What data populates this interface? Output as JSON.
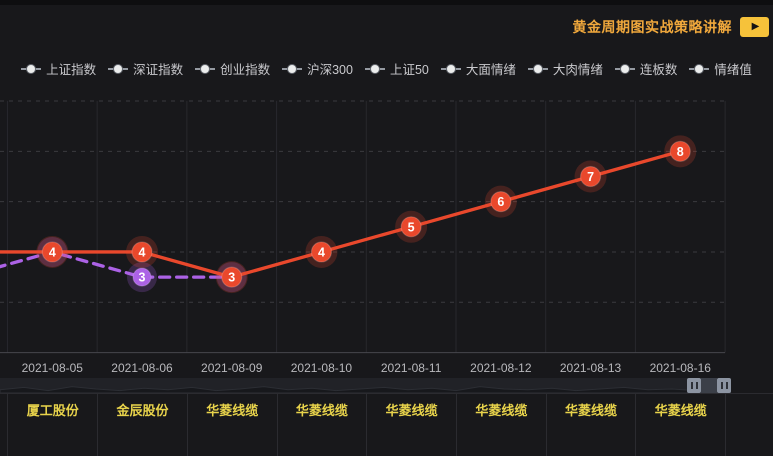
{
  "header": {
    "title": "黄金周期图实战策略讲解",
    "play_icon": "▶"
  },
  "legend": {
    "items": [
      "上证指数",
      "深证指数",
      "创业指数",
      "沪深300",
      "上证50",
      "大面情绪",
      "大肉情绪",
      "连板数",
      "情绪值"
    ]
  },
  "chart_data": {
    "type": "line",
    "title": "",
    "categories": [
      "2021-08-05",
      "2021-08-06",
      "2021-08-09",
      "2021-08-10",
      "2021-08-11",
      "2021-08-12",
      "2021-08-13",
      "2021-08-16"
    ],
    "series": [
      {
        "name": "连板数",
        "color": "#e9482c",
        "line_style": "solid",
        "values": [
          4,
          4,
          3,
          4,
          5,
          6,
          7,
          8
        ],
        "prev_offscreen_value": 4,
        "point_labels": [
          "4",
          "4",
          "3",
          "4",
          "5",
          "6",
          "7",
          "8"
        ]
      },
      {
        "name": "情绪值",
        "color": "#ac62e6",
        "line_style": "dashed",
        "values": [
          4,
          3,
          3,
          null,
          null,
          null,
          null,
          null
        ],
        "prev_offscreen_value": 3,
        "point_labels": [
          "4",
          "3",
          "3",
          "",
          "",
          "",
          "",
          ""
        ]
      }
    ],
    "ylim": [
      0,
      10
    ],
    "y_gridline_step": 2,
    "grid": true,
    "legend_position": "top",
    "point_label_color": "#ffffff",
    "xlabel": "",
    "ylabel": ""
  },
  "stock_table": {
    "stocks": [
      "厦工股份",
      "金辰股份",
      "华菱线缆",
      "华菱线缆",
      "华菱线缆",
      "华菱线缆",
      "华菱线缆",
      "华菱线缆"
    ]
  },
  "colors": {
    "red_series": "#e9482c",
    "purple_series": "#ac62e6",
    "title_gold": "#f0a83c",
    "button_yellow": "#f6c23a",
    "stock_yellow": "#e8d34b",
    "axis_text": "#b9b9bd",
    "legend_text": "#c9c9cd",
    "background": "#18181b"
  }
}
